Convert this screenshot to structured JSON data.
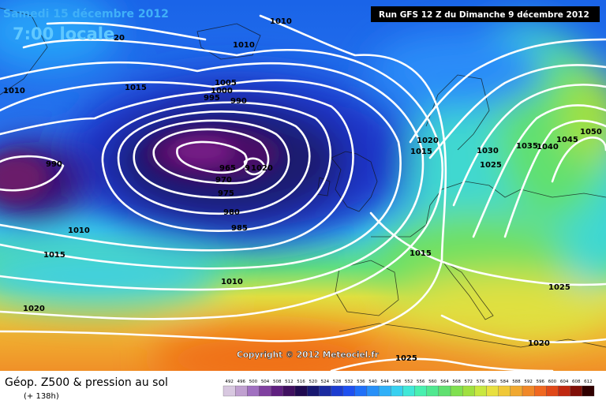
{
  "header": {
    "date": "Samedi 15 décembre 2012",
    "time": "7:00 locale",
    "run": "Run GFS 12 Z du Dimanche 9 décembre 2012"
  },
  "copyright": "Copyright © 2012 Meteociel.fr",
  "footer": {
    "title": "Géop. Z500 & pression au sol",
    "lead": "(+ 138h)"
  },
  "isobar_labels": [
    "1010",
    "1010",
    "20",
    "1010",
    "1015",
    "1005",
    "1000",
    "995",
    "990",
    "990",
    "965",
    "970",
    "975",
    "980",
    "985",
    "9",
    "1020",
    "1010",
    "1015",
    "1010",
    "1020",
    "1020",
    "1015",
    "1030",
    "1035",
    "1040",
    "1045",
    "1050",
    "1025",
    "1015",
    "1025",
    "1020",
    "1025"
  ],
  "legend": {
    "values": [
      492,
      496,
      500,
      504,
      508,
      512,
      516,
      520,
      524,
      528,
      532,
      536,
      540,
      544,
      548,
      552,
      556,
      560,
      564,
      568,
      572,
      576,
      580,
      584,
      588,
      592,
      596,
      600,
      604,
      608,
      612
    ],
    "colors": [
      "#d8c8e0",
      "#c0a0d0",
      "#a070c0",
      "#8040a0",
      "#602080",
      "#401060",
      "#200a50",
      "#181870",
      "#1a2aa0",
      "#1c3cd0",
      "#1e50f0",
      "#2070f8",
      "#2890f8",
      "#30b0f8",
      "#38d0f0",
      "#40e8d8",
      "#48f0b0",
      "#50e890",
      "#60e070",
      "#80e050",
      "#a0e040",
      "#c8e840",
      "#e8e040",
      "#f0c838",
      "#f0a830",
      "#f08828",
      "#f06820",
      "#e04818",
      "#c02810",
      "#801008",
      "#300000"
    ]
  }
}
